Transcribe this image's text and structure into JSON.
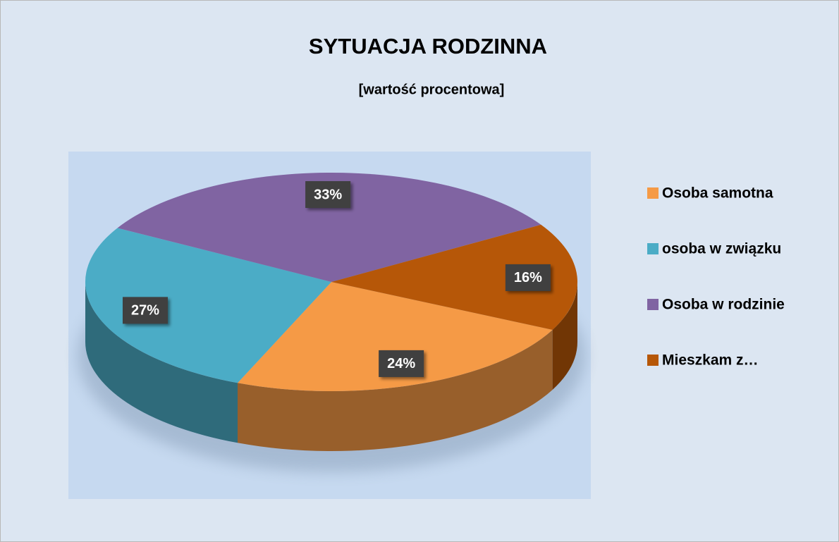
{
  "chart_data": {
    "type": "pie3d",
    "title": "SYTUACJA RODZINNA",
    "subtitle": "[wartość procentowa]",
    "categories": [
      "Osoba samotna",
      "osoba w związku",
      "Osoba w rodzinie",
      "Mieszkam z…"
    ],
    "values": [
      24,
      27,
      33,
      16
    ],
    "value_labels": [
      "24%",
      "27%",
      "33%",
      "16%"
    ],
    "colors": [
      "#f59a46",
      "#4bacc6",
      "#8064a2",
      "#b65708"
    ],
    "legend": "right"
  }
}
